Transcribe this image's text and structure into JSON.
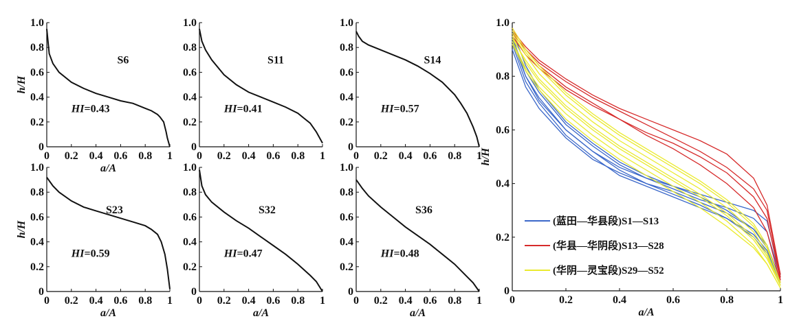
{
  "chart_data": [
    {
      "type": "line",
      "label": "S6",
      "hi": "0.43",
      "xlabel": "a/A",
      "ylabel": "h/H",
      "xlim": [
        0,
        1
      ],
      "ylim": [
        0,
        1
      ],
      "xticks": [
        "0",
        "0.2",
        "0.4",
        "0.6",
        "0.8",
        "1"
      ],
      "yticks": [
        "0",
        "0.2",
        "0.4",
        "0.6",
        "0.8",
        "1.0"
      ],
      "x": [
        0,
        0.02,
        0.05,
        0.1,
        0.2,
        0.3,
        0.4,
        0.5,
        0.6,
        0.7,
        0.8,
        0.85,
        0.9,
        0.92,
        0.95,
        0.97,
        0.98,
        1
      ],
      "y": [
        0.95,
        0.75,
        0.67,
        0.6,
        0.52,
        0.47,
        0.43,
        0.4,
        0.37,
        0.35,
        0.31,
        0.29,
        0.26,
        0.24,
        0.2,
        0.12,
        0.07,
        0
      ],
      "color": "#111111"
    },
    {
      "type": "line",
      "label": "S11",
      "hi": "0.41",
      "xlabel": "",
      "ylabel": "",
      "xlim": [
        0,
        1
      ],
      "ylim": [
        0,
        1
      ],
      "xticks": [
        "0",
        "0.2",
        "0.4",
        "0.6",
        "0.8",
        "1"
      ],
      "yticks": [
        "0",
        "0.2",
        "0.4",
        "0.6",
        "0.8",
        "1.0"
      ],
      "x": [
        0,
        0.02,
        0.05,
        0.1,
        0.2,
        0.3,
        0.4,
        0.5,
        0.6,
        0.7,
        0.8,
        0.85,
        0.9,
        0.95,
        1
      ],
      "y": [
        0.95,
        0.85,
        0.78,
        0.7,
        0.58,
        0.5,
        0.44,
        0.4,
        0.36,
        0.32,
        0.27,
        0.23,
        0.19,
        0.12,
        0.03
      ],
      "color": "#111111"
    },
    {
      "type": "line",
      "label": "S14",
      "hi": "0.57",
      "xlabel": "",
      "ylabel": "",
      "xlim": [
        0,
        1
      ],
      "ylim": [
        0,
        1
      ],
      "xticks": [
        "0",
        "0.2",
        "0.4",
        "0.6",
        "0.8",
        "1"
      ],
      "yticks": [
        "0",
        "0.2",
        "0.4",
        "0.6",
        "0.8",
        "1.0"
      ],
      "x": [
        0,
        0.02,
        0.05,
        0.1,
        0.2,
        0.3,
        0.4,
        0.5,
        0.6,
        0.7,
        0.8,
        0.85,
        0.9,
        0.95,
        0.98,
        1
      ],
      "y": [
        0.93,
        0.89,
        0.85,
        0.82,
        0.78,
        0.74,
        0.7,
        0.65,
        0.59,
        0.52,
        0.42,
        0.35,
        0.27,
        0.16,
        0.08,
        0
      ],
      "color": "#111111"
    },
    {
      "type": "line",
      "label": "S23",
      "hi": "0.59",
      "xlabel": "a/A",
      "ylabel": "h/H",
      "xlim": [
        0,
        1
      ],
      "ylim": [
        0,
        1
      ],
      "xticks": [
        "0",
        "0.2",
        "0.4",
        "0.6",
        "0.8",
        "1"
      ],
      "yticks": [
        "0",
        "0.2",
        "0.4",
        "0.6",
        "0.8",
        "1.0"
      ],
      "x": [
        0,
        0.05,
        0.1,
        0.2,
        0.3,
        0.4,
        0.5,
        0.6,
        0.7,
        0.8,
        0.85,
        0.9,
        0.93,
        0.96,
        0.98,
        1
      ],
      "y": [
        0.92,
        0.85,
        0.8,
        0.73,
        0.68,
        0.65,
        0.62,
        0.59,
        0.56,
        0.53,
        0.5,
        0.46,
        0.4,
        0.3,
        0.18,
        0.02
      ],
      "color": "#111111"
    },
    {
      "type": "line",
      "label": "S32",
      "hi": "0.47",
      "xlabel": "a/A",
      "ylabel": "",
      "xlim": [
        0,
        1
      ],
      "ylim": [
        0,
        1
      ],
      "xticks": [
        "0",
        "0.2",
        "0.4",
        "0.6",
        "0.8",
        "1"
      ],
      "yticks": [
        "0",
        "0.2",
        "0.4",
        "0.6",
        "0.8",
        "1.0"
      ],
      "x": [
        0,
        0.02,
        0.05,
        0.1,
        0.2,
        0.3,
        0.4,
        0.5,
        0.6,
        0.7,
        0.8,
        0.9,
        0.95,
        1
      ],
      "y": [
        0.98,
        0.85,
        0.78,
        0.72,
        0.64,
        0.57,
        0.51,
        0.44,
        0.37,
        0.3,
        0.22,
        0.13,
        0.08,
        0
      ],
      "color": "#111111"
    },
    {
      "type": "line",
      "label": "S36",
      "hi": "0.48",
      "xlabel": "a/A",
      "ylabel": "",
      "xlim": [
        0,
        1
      ],
      "ylim": [
        0,
        1
      ],
      "xticks": [
        "0",
        "0.2",
        "0.4",
        "0.6",
        "0.8",
        "1"
      ],
      "yticks": [
        "0",
        "0.2",
        "0.4",
        "0.6",
        "0.8",
        "1.0"
      ],
      "x": [
        0,
        0.05,
        0.1,
        0.2,
        0.3,
        0.4,
        0.5,
        0.6,
        0.7,
        0.8,
        0.9,
        0.95,
        1
      ],
      "y": [
        0.9,
        0.83,
        0.77,
        0.68,
        0.6,
        0.52,
        0.45,
        0.38,
        0.3,
        0.22,
        0.12,
        0.07,
        0
      ],
      "color": "#111111"
    },
    {
      "type": "line",
      "xlabel": "a/A",
      "ylabel": "h/H",
      "xlim": [
        0,
        1
      ],
      "ylim": [
        0,
        1
      ],
      "xticks": [
        "0",
        "0.2",
        "0.4",
        "0.6",
        "0.8",
        "1"
      ],
      "yticks": [
        "0",
        "0.2",
        "0.4",
        "0.6",
        "0.8",
        "1.0"
      ],
      "legend_position": "lower-left",
      "groups": [
        {
          "name": "(蓝田—华县段)S1—S13",
          "color": "#3a67c9",
          "curves": [
            {
              "x": [
                0,
                0.05,
                0.1,
                0.2,
                0.3,
                0.4,
                0.5,
                0.6,
                0.7,
                0.8,
                0.9,
                0.95,
                1
              ],
              "y": [
                0.92,
                0.78,
                0.7,
                0.58,
                0.5,
                0.43,
                0.39,
                0.35,
                0.31,
                0.27,
                0.21,
                0.15,
                0.03
              ]
            },
            {
              "x": [
                0,
                0.05,
                0.1,
                0.2,
                0.3,
                0.4,
                0.5,
                0.6,
                0.7,
                0.8,
                0.9,
                0.95,
                1
              ],
              "y": [
                0.95,
                0.8,
                0.72,
                0.6,
                0.52,
                0.45,
                0.4,
                0.36,
                0.32,
                0.27,
                0.2,
                0.14,
                0.02
              ]
            },
            {
              "x": [
                0,
                0.05,
                0.1,
                0.2,
                0.3,
                0.4,
                0.5,
                0.6,
                0.7,
                0.8,
                0.9,
                0.95,
                1
              ],
              "y": [
                0.9,
                0.76,
                0.68,
                0.57,
                0.49,
                0.44,
                0.4,
                0.37,
                0.33,
                0.29,
                0.23,
                0.17,
                0.04
              ]
            },
            {
              "x": [
                0,
                0.05,
                0.1,
                0.2,
                0.3,
                0.4,
                0.5,
                0.6,
                0.7,
                0.8,
                0.9,
                0.95,
                1
              ],
              "y": [
                0.97,
                0.84,
                0.75,
                0.63,
                0.55,
                0.48,
                0.43,
                0.39,
                0.35,
                0.3,
                0.23,
                0.16,
                0.03
              ]
            },
            {
              "x": [
                0,
                0.05,
                0.1,
                0.2,
                0.3,
                0.4,
                0.5,
                0.6,
                0.7,
                0.8,
                0.9,
                0.95,
                1
              ],
              "y": [
                0.94,
                0.82,
                0.74,
                0.62,
                0.54,
                0.47,
                0.42,
                0.38,
                0.34,
                0.31,
                0.27,
                0.22,
                0.05
              ]
            },
            {
              "x": [
                0,
                0.05,
                0.1,
                0.2,
                0.3,
                0.4,
                0.5,
                0.6,
                0.7,
                0.8,
                0.9,
                0.95,
                1
              ],
              "y": [
                0.93,
                0.8,
                0.71,
                0.6,
                0.52,
                0.46,
                0.42,
                0.39,
                0.36,
                0.33,
                0.3,
                0.26,
                0.06
              ]
            }
          ]
        },
        {
          "name": "(华县—华阴段)S13—S28",
          "color": "#d62a2a",
          "curves": [
            {
              "x": [
                0,
                0.05,
                0.1,
                0.2,
                0.3,
                0.4,
                0.5,
                0.6,
                0.7,
                0.8,
                0.9,
                0.95,
                1
              ],
              "y": [
                0.96,
                0.9,
                0.85,
                0.78,
                0.72,
                0.67,
                0.62,
                0.57,
                0.52,
                0.46,
                0.38,
                0.3,
                0.05
              ]
            },
            {
              "x": [
                0,
                0.05,
                0.1,
                0.2,
                0.3,
                0.4,
                0.5,
                0.6,
                0.7,
                0.8,
                0.9,
                0.95,
                1
              ],
              "y": [
                0.97,
                0.91,
                0.86,
                0.79,
                0.73,
                0.68,
                0.64,
                0.6,
                0.56,
                0.51,
                0.42,
                0.32,
                0.06
              ]
            },
            {
              "x": [
                0,
                0.05,
                0.1,
                0.2,
                0.3,
                0.4,
                0.5,
                0.6,
                0.7,
                0.8,
                0.9,
                0.95,
                1
              ],
              "y": [
                0.95,
                0.88,
                0.83,
                0.75,
                0.69,
                0.64,
                0.59,
                0.55,
                0.5,
                0.44,
                0.35,
                0.27,
                0.04
              ]
            },
            {
              "x": [
                0,
                0.05,
                0.1,
                0.2,
                0.3,
                0.4,
                0.5,
                0.6,
                0.7,
                0.8,
                0.9,
                0.95,
                1
              ],
              "y": [
                0.98,
                0.9,
                0.84,
                0.76,
                0.7,
                0.64,
                0.58,
                0.53,
                0.47,
                0.4,
                0.31,
                0.22,
                0.03
              ]
            }
          ]
        },
        {
          "name": "(华阴—灵宝段)S29—S52",
          "color": "#eaea2e",
          "curves": [
            {
              "x": [
                0,
                0.05,
                0.1,
                0.2,
                0.3,
                0.4,
                0.5,
                0.6,
                0.7,
                0.8,
                0.9,
                0.95,
                1
              ],
              "y": [
                0.95,
                0.85,
                0.78,
                0.68,
                0.6,
                0.53,
                0.47,
                0.41,
                0.35,
                0.28,
                0.19,
                0.12,
                0.02
              ]
            },
            {
              "x": [
                0,
                0.05,
                0.1,
                0.2,
                0.3,
                0.4,
                0.5,
                0.6,
                0.7,
                0.8,
                0.9,
                0.95,
                1
              ],
              "y": [
                0.96,
                0.88,
                0.81,
                0.71,
                0.63,
                0.56,
                0.5,
                0.44,
                0.38,
                0.31,
                0.22,
                0.14,
                0.02
              ]
            },
            {
              "x": [
                0,
                0.05,
                0.1,
                0.2,
                0.3,
                0.4,
                0.5,
                0.6,
                0.7,
                0.8,
                0.9,
                0.95,
                1
              ],
              "y": [
                0.93,
                0.83,
                0.76,
                0.66,
                0.58,
                0.51,
                0.45,
                0.39,
                0.33,
                0.26,
                0.17,
                0.1,
                0.01
              ]
            },
            {
              "x": [
                0,
                0.05,
                0.1,
                0.2,
                0.3,
                0.4,
                0.5,
                0.6,
                0.7,
                0.8,
                0.9,
                0.95,
                1
              ],
              "y": [
                0.97,
                0.89,
                0.83,
                0.73,
                0.65,
                0.58,
                0.52,
                0.46,
                0.4,
                0.33,
                0.24,
                0.16,
                0.03
              ]
            },
            {
              "x": [
                0,
                0.05,
                0.1,
                0.2,
                0.3,
                0.4,
                0.5,
                0.6,
                0.7,
                0.8,
                0.9,
                0.95,
                1
              ],
              "y": [
                0.94,
                0.86,
                0.79,
                0.69,
                0.61,
                0.54,
                0.48,
                0.42,
                0.36,
                0.29,
                0.2,
                0.13,
                0.02
              ]
            },
            {
              "x": [
                0,
                0.05,
                0.1,
                0.2,
                0.3,
                0.4,
                0.5,
                0.6,
                0.7,
                0.8,
                0.9,
                0.95,
                1
              ],
              "y": [
                0.98,
                0.9,
                0.84,
                0.74,
                0.66,
                0.59,
                0.53,
                0.47,
                0.41,
                0.34,
                0.25,
                0.17,
                0.03
              ]
            },
            {
              "x": [
                0,
                0.05,
                0.1,
                0.2,
                0.3,
                0.4,
                0.5,
                0.6,
                0.7,
                0.8,
                0.9,
                0.95,
                1
              ],
              "y": [
                0.92,
                0.82,
                0.75,
                0.64,
                0.56,
                0.49,
                0.43,
                0.37,
                0.31,
                0.24,
                0.16,
                0.1,
                0.01
              ]
            }
          ]
        }
      ]
    }
  ]
}
